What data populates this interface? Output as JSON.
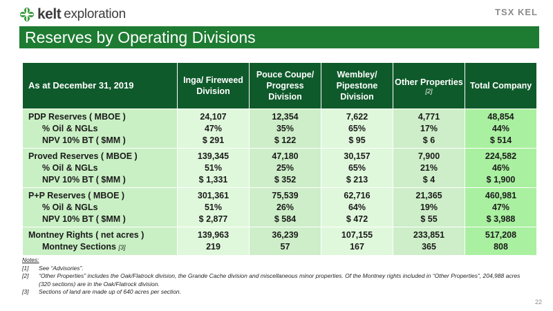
{
  "logo": {
    "brand": "kelt",
    "sub": "exploration"
  },
  "tsx": {
    "text": "TSX KEL"
  },
  "title": "Reserves by Operating Divisions",
  "table": {
    "header": {
      "corner": "As at December 31, 2019",
      "columns": [
        {
          "lines": [
            "Inga/",
            "Fireweed",
            "Division"
          ],
          "note": ""
        },
        {
          "lines": [
            "Pouce Coupe/",
            "Progress",
            "Division"
          ],
          "note": ""
        },
        {
          "lines": [
            "Wembley/",
            "Pipestone",
            "Division"
          ],
          "note": ""
        },
        {
          "lines": [
            "Other",
            "Properties"
          ],
          "note": "[2]"
        },
        {
          "lines": [
            "Total",
            "Company"
          ],
          "note": ""
        }
      ]
    },
    "groups": [
      {
        "labels": [
          "PDP Reserves ( MBOE )",
          "% Oil & NGLs",
          "NPV 10% BT ( $MM )"
        ],
        "cols": [
          [
            "24,107",
            "47%",
            "$ 291"
          ],
          [
            "12,354",
            "35%",
            "$ 122"
          ],
          [
            "7,622",
            "65%",
            "$ 95"
          ],
          [
            "4,771",
            "17%",
            "$ 6"
          ],
          [
            "48,854",
            "44%",
            "$ 514"
          ]
        ]
      },
      {
        "labels": [
          "Proved Reserves ( MBOE )",
          "% Oil & NGLs",
          "NPV 10% BT ( $MM )"
        ],
        "cols": [
          [
            "139,345",
            "51%",
            "$ 1,331"
          ],
          [
            "47,180",
            "25%",
            "$ 352"
          ],
          [
            "30,157",
            "65%",
            "$ 213"
          ],
          [
            "7,900",
            "21%",
            "$ 4"
          ],
          [
            "224,582",
            "46%",
            "$ 1,900"
          ]
        ]
      },
      {
        "labels": [
          "P+P Reserves ( MBOE )",
          "% Oil & NGLs",
          "NPV 10% BT ( $MM )"
        ],
        "cols": [
          [
            "301,361",
            "51%",
            "$ 2,877"
          ],
          [
            "75,539",
            "26%",
            "$ 584"
          ],
          [
            "62,716",
            "64%",
            "$ 472"
          ],
          [
            "21,365",
            "19%",
            "$ 55"
          ],
          [
            "460,981",
            "47%",
            "$ 3,988"
          ]
        ]
      },
      {
        "labels": [
          "Montney Rights ( net acres )",
          "Montney Sections"
        ],
        "label_note": "[3]",
        "cols": [
          [
            "139,963",
            "219"
          ],
          [
            "36,239",
            "57"
          ],
          [
            "107,155",
            "167"
          ],
          [
            "233,851",
            "365"
          ],
          [
            "517,208",
            "808"
          ]
        ]
      }
    ]
  },
  "notes": {
    "heading": "Notes:",
    "items": [
      {
        "key": "[1]",
        "text": "See “Advisories”."
      },
      {
        "key": "[2]",
        "text": "“Other Properties” includes the Oak/Flatrock division, the Grande Cache division and miscellaneous minor properties. Of the Montney rights included in “Other Properties”, 204,988 acres (320 sections) are in the Oak/Flatrock division."
      },
      {
        "key": "[3]",
        "text": "Sections of land are made up of 640 acres per section."
      }
    ]
  },
  "page_number": "22",
  "colors": {
    "title_bar": "#1e7b32",
    "header": "#0f5a2b",
    "label_cell": "#c9f0c4",
    "total_col": "#a9f0a0"
  }
}
